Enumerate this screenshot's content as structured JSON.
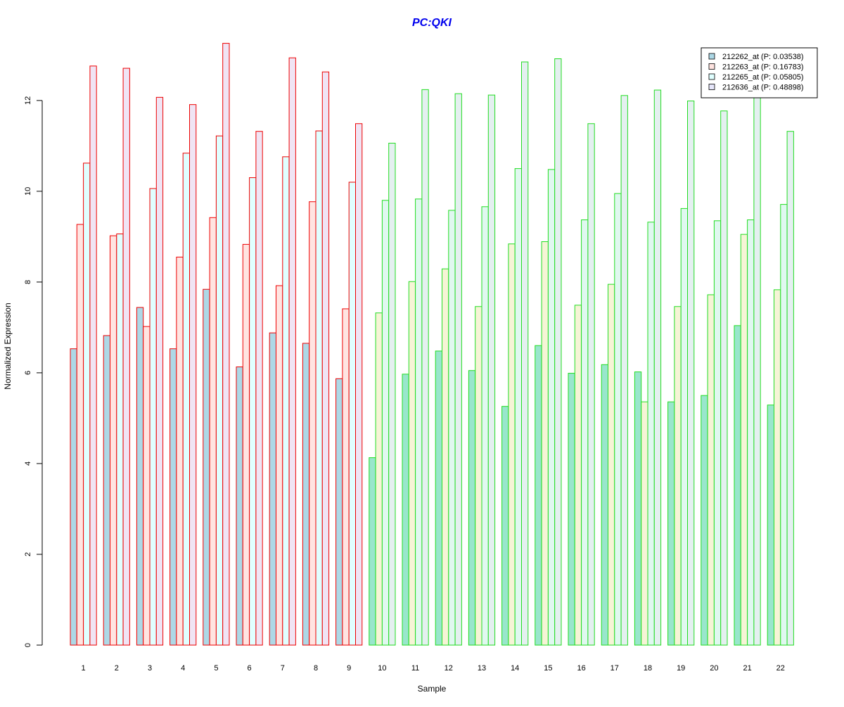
{
  "chart_data": {
    "type": "bar",
    "title": "PC:QKI",
    "xlabel": "Sample",
    "ylabel": "Normalized Expression",
    "ylim": [
      0,
      13.3
    ],
    "y_ticks": [
      0,
      2,
      4,
      6,
      8,
      10,
      12
    ],
    "grid": false,
    "legend_position": "top-right",
    "categories": [
      "1",
      "2",
      "3",
      "4",
      "5",
      "6",
      "7",
      "8",
      "9",
      "10",
      "11",
      "12",
      "13",
      "14",
      "15",
      "16",
      "17",
      "18",
      "19",
      "20",
      "21",
      "22"
    ],
    "sample_group_outline_colors": [
      "#ee0000",
      "#ee0000",
      "#ee0000",
      "#ee0000",
      "#ee0000",
      "#ee0000",
      "#ee0000",
      "#ee0000",
      "#ee0000",
      "#22dd22",
      "#22dd22",
      "#22dd22",
      "#22dd22",
      "#22dd22",
      "#22dd22",
      "#22dd22",
      "#22dd22",
      "#22dd22",
      "#22dd22",
      "#22dd22",
      "#22dd22",
      "#22dd22"
    ],
    "series": [
      {
        "name": "212262_at (P: 0.03538)",
        "fill_colors": {
          "red": "#add8e6",
          "green": "#99e6cc"
        },
        "legend_fill": "#add8e6",
        "values": [
          6.53,
          6.82,
          7.44,
          6.53,
          7.84,
          6.13,
          6.88,
          6.65,
          5.87,
          4.13,
          5.97,
          6.48,
          6.05,
          5.26,
          6.6,
          5.99,
          6.18,
          6.02,
          5.36,
          5.5,
          7.04,
          5.29
        ]
      },
      {
        "name": "212263_at (P: 0.16783)",
        "fill_colors": {
          "red": "#ffe4e1",
          "green": "#f6f4d6"
        },
        "legend_fill": "#ffe4e1",
        "values": [
          9.27,
          9.02,
          7.02,
          8.55,
          9.42,
          8.83,
          7.92,
          9.77,
          7.41,
          7.32,
          8.01,
          8.29,
          7.46,
          8.84,
          8.89,
          7.49,
          7.95,
          5.36,
          7.46,
          7.72,
          9.05,
          7.83
        ]
      },
      {
        "name": "212265_at (P: 0.05805)",
        "fill_colors": {
          "red": "#e0ffff",
          "green": "#e0f8f0"
        },
        "legend_fill": "#e0ffff",
        "values": [
          10.62,
          9.06,
          10.06,
          10.84,
          11.22,
          10.3,
          10.76,
          11.33,
          10.2,
          9.8,
          9.83,
          9.58,
          9.66,
          10.5,
          10.48,
          9.37,
          9.95,
          9.32,
          9.62,
          9.35,
          9.37,
          9.71
        ]
      },
      {
        "name": "212636_at (P: 0.48898)",
        "fill_colors": {
          "red": "#f0e4f4",
          "green": "#e4f0f0"
        },
        "legend_fill": "#e6e6fa",
        "values": [
          12.76,
          12.71,
          12.07,
          11.91,
          13.26,
          11.32,
          12.94,
          12.63,
          11.49,
          11.06,
          12.24,
          12.15,
          12.12,
          12.85,
          12.92,
          11.49,
          12.11,
          12.23,
          11.99,
          11.77,
          12.08,
          11.32
        ]
      }
    ]
  }
}
